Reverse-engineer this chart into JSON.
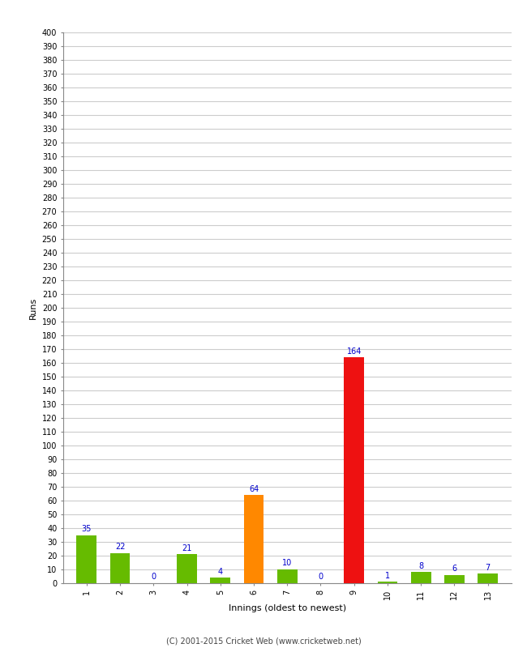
{
  "innings": [
    1,
    2,
    3,
    4,
    5,
    6,
    7,
    8,
    9,
    10,
    11,
    12,
    13
  ],
  "runs": [
    35,
    22,
    0,
    21,
    4,
    64,
    10,
    0,
    164,
    1,
    8,
    6,
    7
  ],
  "colors": [
    "#66bb00",
    "#66bb00",
    "#66bb00",
    "#66bb00",
    "#66bb00",
    "#ff8800",
    "#66bb00",
    "#66bb00",
    "#ee1111",
    "#66bb00",
    "#66bb00",
    "#66bb00",
    "#66bb00"
  ],
  "xlabel": "Innings (oldest to newest)",
  "ylabel": "Runs",
  "ylim": [
    0,
    400
  ],
  "ytick_step": 10,
  "label_color": "#0000cc",
  "label_fontsize": 7,
  "axis_fontsize": 8,
  "tick_fontsize": 7,
  "background_color": "#ffffff",
  "grid_color": "#cccccc",
  "footer": "(C) 2001-2015 Cricket Web (www.cricketweb.net)"
}
